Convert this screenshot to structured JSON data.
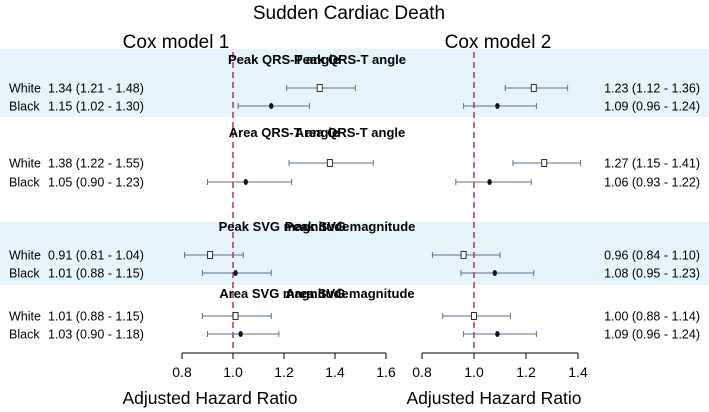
{
  "chart_data": {
    "type": "forest",
    "title": "Sudden Cardiac Death",
    "xlabel": "Adjusted Hazard Ratio",
    "reference_line": 1.0,
    "panels": [
      {
        "name": "Cox model 1",
        "xlim": [
          0.8,
          1.6
        ],
        "ticks": [
          "0.8",
          "1.0",
          "1.2",
          "1.4",
          "1.6"
        ],
        "groups": [
          {
            "title": "Peak QRS-T angle",
            "shaded": true,
            "rows": [
              {
                "label": "White",
                "text": "1.34 (1.21 - 1.48)",
                "hr": 1.34,
                "lo": 1.21,
                "hi": 1.48,
                "marker": "square"
              },
              {
                "label": "Black",
                "text": "1.15 (1.02 - 1.30)",
                "hr": 1.15,
                "lo": 1.02,
                "hi": 1.3,
                "marker": "dot"
              }
            ]
          },
          {
            "title": "Area QRS-T angle",
            "shaded": false,
            "rows": [
              {
                "label": "White",
                "text": "1.38 (1.22 - 1.55)",
                "hr": 1.38,
                "lo": 1.22,
                "hi": 1.55,
                "marker": "square"
              },
              {
                "label": "Black",
                "text": "1.05 (0.90 - 1.23)",
                "hr": 1.05,
                "lo": 0.9,
                "hi": 1.23,
                "marker": "dot"
              }
            ]
          },
          {
            "title": "Peak SVG magnitude",
            "shaded": true,
            "rows": [
              {
                "label": "White",
                "text": "0.91 (0.81 - 1.04)",
                "hr": 0.91,
                "lo": 0.81,
                "hi": 1.04,
                "marker": "square"
              },
              {
                "label": "Black",
                "text": "1.01 (0.88 - 1.15)",
                "hr": 1.01,
                "lo": 0.88,
                "hi": 1.15,
                "marker": "dot"
              }
            ]
          },
          {
            "title": "Area SVG magnitude",
            "shaded": false,
            "rows": [
              {
                "label": "White",
                "text": "1.01 (0.88 - 1.15)",
                "hr": 1.01,
                "lo": 0.88,
                "hi": 1.15,
                "marker": "square"
              },
              {
                "label": "Black",
                "text": "1.03 (0.90 - 1.18)",
                "hr": 1.03,
                "lo": 0.9,
                "hi": 1.18,
                "marker": "dot"
              }
            ]
          }
        ]
      },
      {
        "name": "Cox model 2",
        "xlim": [
          0.8,
          1.4
        ],
        "ticks": [
          "0.8",
          "1.0",
          "1.2",
          "1.4"
        ],
        "groups": [
          {
            "title": "Peak QRS-T angle",
            "shaded": true,
            "rows": [
              {
                "label": "White",
                "text": "1.23 (1.12 - 1.36)",
                "hr": 1.23,
                "lo": 1.12,
                "hi": 1.36,
                "marker": "square"
              },
              {
                "label": "Black",
                "text": "1.09 (0.96 - 1.24)",
                "hr": 1.09,
                "lo": 0.96,
                "hi": 1.24,
                "marker": "dot"
              }
            ]
          },
          {
            "title": "Area QRS-T angle",
            "shaded": false,
            "rows": [
              {
                "label": "White",
                "text": "1.27 (1.15 - 1.41)",
                "hr": 1.27,
                "lo": 1.15,
                "hi": 1.41,
                "marker": "square"
              },
              {
                "label": "Black",
                "text": "1.06 (0.93 - 1.22)",
                "hr": 1.06,
                "lo": 0.93,
                "hi": 1.22,
                "marker": "dot"
              }
            ]
          },
          {
            "title": "Peak SVG magnitude",
            "shaded": true,
            "rows": [
              {
                "label": "White",
                "text": "0.96 (0.84 - 1.10)",
                "hr": 0.96,
                "lo": 0.84,
                "hi": 1.1,
                "marker": "square"
              },
              {
                "label": "Black",
                "text": "1.08 (0.95 - 1.23)",
                "hr": 1.08,
                "lo": 0.95,
                "hi": 1.23,
                "marker": "dot"
              }
            ]
          },
          {
            "title": "Area SVG magnitude",
            "shaded": false,
            "rows": [
              {
                "label": "White",
                "text": "1.00 (0.88 - 1.14)",
                "hr": 1.0,
                "lo": 0.88,
                "hi": 1.14,
                "marker": "square"
              },
              {
                "label": "Black",
                "text": "1.09 (0.96 - 1.24)",
                "hr": 1.09,
                "lo": 0.96,
                "hi": 1.24,
                "marker": "dot"
              }
            ]
          }
        ]
      }
    ]
  }
}
